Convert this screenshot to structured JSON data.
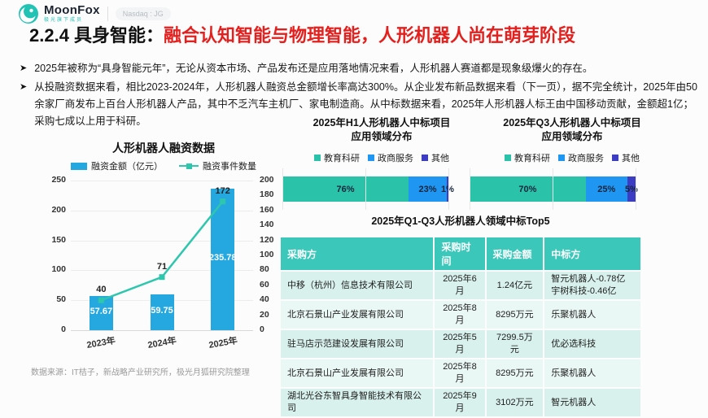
{
  "header": {
    "logo": {
      "brand": "MoonFox",
      "sub": "极光旗下成员",
      "badge": "Nasdaq : JG"
    },
    "title_prefix": "2.2.4 具身智能：",
    "title_rest": "融合认知智能与物理智能，人形机器人尚在萌芽阶段"
  },
  "bullets": [
    "2025年被称为“具身智能元年”，无论从资本市场、产品发布还是应用落地情况来看，人形机器人赛道都是现象级爆火的存在。",
    "从投融资数据来看，相比2023-2024年，人形机器人融资总金额增长率高达300%。从企业发布新品数据来看（下一页），据不完全统计，2025年由50余家厂商发布上百台人形机器人产品，其中不乏汽车主机厂、家电制造商。从中标数据来看，2025年人形机器人标王由中国移动贡献，金额超1亿；采购七成以上用于科研。"
  ],
  "colors": {
    "brand_teal": "#20C3B4",
    "bar_blue": "#25A8E0",
    "line_teal": "#2EC7AE",
    "stacked": [
      "#2BC2AA",
      "#1E96F2",
      "#3D3DC4"
    ],
    "table_header": "#3BC8BA",
    "row_odd": "#D8F1EC",
    "row_even": "#EAF8F5",
    "title_red": "#E3201D"
  },
  "chart_data": [
    {
      "id": "funding",
      "type": "bar",
      "subtype": "combo-bar-line",
      "title": "人形机器人融资数据",
      "categories": [
        "2023年",
        "2024年",
        "2025年"
      ],
      "series": [
        {
          "name": "融资金额（亿元）",
          "type": "bar",
          "axis": "left",
          "values": [
            57.67,
            59.75,
            235.78
          ]
        },
        {
          "name": "融资事件数量",
          "type": "line",
          "axis": "right",
          "values": [
            40,
            71,
            172
          ]
        }
      ],
      "left_axis": {
        "min": 0,
        "max": 250,
        "step": 50
      },
      "right_axis": {
        "min": 0,
        "max": 200,
        "step": 20
      },
      "legend_position": "top",
      "grid": true
    },
    {
      "id": "h1-awards",
      "type": "bar",
      "subtype": "stacked-horizontal",
      "title": "2025年H1人形机器人中标项目",
      "subtitle": "应用领域分布",
      "categories": [
        "教育科研",
        "政商服务",
        "其他"
      ],
      "values": [
        76,
        23,
        1
      ],
      "unit": "%"
    },
    {
      "id": "q3-awards",
      "type": "bar",
      "subtype": "stacked-horizontal",
      "title": "2025年Q3人形机器人中标项目",
      "subtitle": "应用领域分布",
      "categories": [
        "教育科研",
        "政商服务",
        "其他"
      ],
      "values": [
        70,
        25,
        5
      ],
      "unit": "%"
    },
    {
      "id": "top5-table",
      "type": "table",
      "title": "2025年Q1-Q3人形机器人领域中标Top5",
      "columns": [
        "采购方",
        "采购时间",
        "采购金额",
        "中标方"
      ],
      "rows": [
        [
          "中移（杭州）信息技术有限公司",
          "2025年6月",
          "1.24亿元",
          "智元机器人-0.78亿\n宇树科技-0.46亿"
        ],
        [
          "北京石景山产业发展有限公司",
          "2025年8月",
          "8295万元",
          "乐聚机器人"
        ],
        [
          "驻马店示范建设发展有限公司",
          "2025年5月",
          "7299.5万元",
          "优必选科技"
        ],
        [
          "北京石景山产业发展有限公司",
          "2025年8月",
          "8295万元",
          "乐聚机器人"
        ],
        [
          "湖北光谷东智具身智能技术有限公司",
          "2025年9月",
          "3102万元",
          "智元机器人"
        ]
      ]
    }
  ],
  "footer": "数据来源：IT桔子，新战略产业研究所，极光月狐研究院整理"
}
